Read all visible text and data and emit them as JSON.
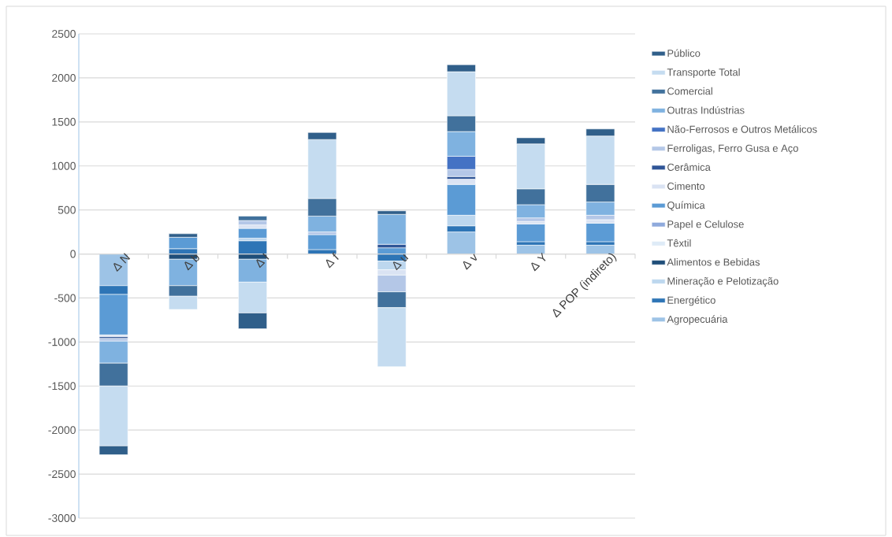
{
  "chart_data": {
    "type": "bar",
    "stacked": true,
    "categories": [
      "Δ N",
      "Δ b",
      "Δ I",
      "Δ f",
      "Δ u",
      "Δ v",
      "Δ Y",
      "Δ POP (indireto)"
    ],
    "ylim": [
      -3000,
      2500
    ],
    "yticks": [
      -3000,
      -2500,
      -2000,
      -1500,
      -1000,
      -500,
      0,
      500,
      1000,
      1500,
      2000,
      2500
    ],
    "grid": "y",
    "legend": "right",
    "series": [
      {
        "name": "Agropecuária",
        "color": "#9dc3e6",
        "values": [
          -360,
          null,
          null,
          null,
          null,
          250,
          100,
          100
        ]
      },
      {
        "name": "Energético",
        "color": "#2e75b6",
        "values": [
          -100,
          60,
          150,
          50,
          -80,
          70,
          40,
          40
        ]
      },
      {
        "name": "Mineração e Pelotização",
        "color": "#bdd7ee",
        "values": [
          null,
          null,
          30,
          null,
          -100,
          120,
          null,
          null
        ]
      },
      {
        "name": "Alimentos e Bebidas",
        "color": "#1f4e79",
        "values": [
          null,
          -60,
          -60,
          null,
          null,
          null,
          null,
          null
        ]
      },
      {
        "name": "Têxtil",
        "color": "#deebf7",
        "values": [
          null,
          null,
          null,
          null,
          null,
          null,
          null,
          null
        ]
      },
      {
        "name": "Papel e Celulose",
        "color": "#8faadc",
        "values": [
          null,
          null,
          null,
          null,
          null,
          null,
          null,
          null
        ]
      },
      {
        "name": "Química",
        "color": "#5b9bd5",
        "values": [
          -460,
          130,
          110,
          170,
          70,
          350,
          200,
          210
        ]
      },
      {
        "name": "Cimento",
        "color": "#dae3f3",
        "values": [
          -20,
          null,
          40,
          null,
          -60,
          60,
          30,
          40
        ]
      },
      {
        "name": "Cerâmica",
        "color": "#2f5597",
        "values": [
          -20,
          null,
          null,
          null,
          40,
          30,
          null,
          null
        ]
      },
      {
        "name": "Ferroligas, Ferro Gusa e Aço",
        "color": "#b4c7e7",
        "values": [
          -30,
          null,
          50,
          30,
          -190,
          80,
          40,
          50
        ]
      },
      {
        "name": "Não-Ferrosos e Outros Metálicos",
        "color": "#4472c4",
        "values": [
          null,
          null,
          null,
          null,
          null,
          150,
          null,
          null
        ]
      },
      {
        "name": "Outras Indústrias",
        "color": "#7fb2e0",
        "values": [
          -250,
          -300,
          -260,
          180,
          340,
          280,
          150,
          150
        ]
      },
      {
        "name": "Comercial",
        "color": "#41719c",
        "values": [
          -260,
          -120,
          50,
          200,
          -180,
          180,
          180,
          200
        ]
      },
      {
        "name": "Transporte Total",
        "color": "#c5dcf0",
        "values": [
          -680,
          -150,
          -350,
          670,
          -670,
          500,
          510,
          550
        ]
      },
      {
        "name": "Público",
        "color": "#305f8a",
        "values": [
          -100,
          40,
          -180,
          80,
          40,
          80,
          70,
          80
        ]
      }
    ]
  }
}
